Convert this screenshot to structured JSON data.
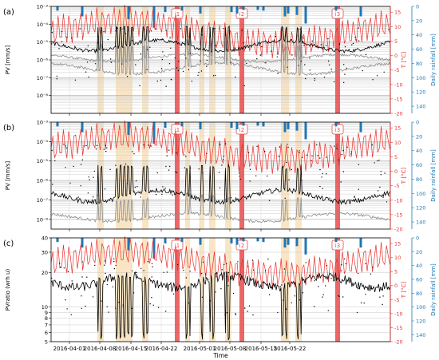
{
  "figure": {
    "time_axis_label": "Time",
    "date_ticks": [
      "2016-04-01",
      "2016-04-08",
      "2016-04-15",
      "2016-04-22",
      "2016-05-01",
      "2016-05-08",
      "2016-05-15",
      "2016-05-22"
    ],
    "event_labels": [
      "i1",
      "i2",
      "i3"
    ],
    "colors": {
      "temperature": "#e8322e",
      "rainfall": "#1f77b4",
      "event_band": "#e74c4c",
      "highlight_band": "#f7dfb5",
      "series_main": "#000000",
      "series_secondary": "#8c8c8c"
    }
  },
  "chart_data": [
    {
      "type": "line",
      "panel_label": "(a)",
      "ylabel": "PV [mm/s]",
      "ylabel_right_temperature": "T [°C]",
      "ylabel_right_rain": "Daily rainfall [mm]",
      "yscale": "log",
      "y_ticks": [
        "10⁻⁸",
        "10⁻⁷",
        "10⁻⁶",
        "10⁻⁵",
        "10⁻⁴",
        "10⁻³"
      ],
      "temperature_ticks": [
        "15",
        "10",
        "5",
        "0",
        "-5",
        "-10",
        "-15",
        "-20"
      ],
      "rain_ticks": [
        "0",
        "20",
        "40",
        "60",
        "80",
        "100",
        "120",
        "140"
      ],
      "ylim": [
        "1e-9",
        "1e-3"
      ],
      "temperature_range": [
        -20,
        17
      ],
      "rain_range": [
        0,
        150
      ]
    },
    {
      "type": "line",
      "panel_label": "(b)",
      "ylabel": "PV [mm/s]",
      "ylabel_right_temperature": "T [°C]",
      "ylabel_right_rain": "Daily rainfall [mm]",
      "yscale": "log",
      "y_ticks": [
        "10⁻⁸",
        "10⁻⁷",
        "10⁻⁶",
        "10⁻⁵",
        "10⁻⁴",
        "10⁻³"
      ],
      "temperature_ticks": [
        "15",
        "10",
        "5",
        "0",
        "-5",
        "-10",
        "-15",
        "-20"
      ],
      "rain_ticks": [
        "0",
        "20",
        "40",
        "60",
        "80",
        "100",
        "120",
        "140"
      ],
      "ylim": [
        "1e-8.5",
        "1e-3"
      ],
      "temperature_range": [
        -20,
        17
      ],
      "rain_range": [
        0,
        150
      ]
    },
    {
      "type": "line",
      "panel_label": "(c)",
      "ylabel": "PVratio (wrh u)",
      "ylabel_right_temperature": "T [°C]",
      "ylabel_right_rain": "Daily rainfall [mm]",
      "yscale": "log",
      "y_ticks": [
        "5",
        "6",
        "7",
        "8",
        "9",
        "10",
        "20",
        "30",
        "40"
      ],
      "temperature_ticks": [
        "15",
        "10",
        "5",
        "0",
        "-5",
        "-10",
        "-15",
        "-20"
      ],
      "rain_ticks": [
        "0",
        "20",
        "40",
        "60",
        "80",
        "100",
        "120",
        "140"
      ],
      "ylim": [
        5,
        40
      ],
      "temperature_range": [
        -20,
        17
      ],
      "rain_range": [
        0,
        150
      ]
    }
  ]
}
